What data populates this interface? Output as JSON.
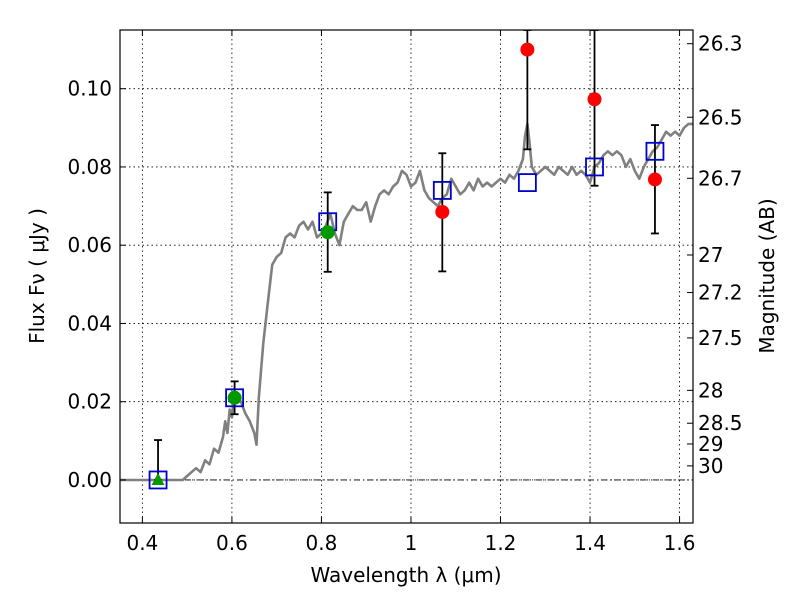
{
  "chart_data": {
    "type": "scatter",
    "xlabel": "Wavelength  λ (μm)",
    "ylabel": "Flux  Fν  ( μJy )",
    "ylabel_right": "Magnitude (AB)",
    "xlim": [
      0.35,
      1.63
    ],
    "ylim": [
      -0.011,
      0.115
    ],
    "grid": true,
    "x_ticks": [
      {
        "value": 0.4,
        "label": "0.4"
      },
      {
        "value": 0.6,
        "label": "0.6"
      },
      {
        "value": 0.8,
        "label": "0.8"
      },
      {
        "value": 1.0,
        "label": "1"
      },
      {
        "value": 1.2,
        "label": "1.2"
      },
      {
        "value": 1.4,
        "label": "1.4"
      },
      {
        "value": 1.6,
        "label": "1.6"
      }
    ],
    "y_ticks": [
      {
        "value": 0.0,
        "label": "0.00"
      },
      {
        "value": 0.02,
        "label": "0.02"
      },
      {
        "value": 0.04,
        "label": "0.04"
      },
      {
        "value": 0.06,
        "label": "0.06"
      },
      {
        "value": 0.08,
        "label": "0.08"
      },
      {
        "value": 0.1,
        "label": "0.10"
      }
    ],
    "right_ticks": [
      {
        "flux": 0.1115,
        "label": "26.3"
      },
      {
        "flux": 0.0927,
        "label": "26.5"
      },
      {
        "flux": 0.0771,
        "label": "26.7"
      },
      {
        "flux": 0.0575,
        "label": "27"
      },
      {
        "flux": 0.0479,
        "label": "27.2"
      },
      {
        "flux": 0.0363,
        "label": "27.5"
      },
      {
        "flux": 0.0229,
        "label": "28"
      },
      {
        "flux": 0.0145,
        "label": "28.5"
      },
      {
        "flux": 0.0092,
        "label": "29"
      },
      {
        "flux": 0.0036,
        "label": "30"
      }
    ],
    "zero_line": 0.0,
    "model_sed": {
      "color": "#808080",
      "points": [
        [
          0.35,
          0.0
        ],
        [
          0.45,
          0.0
        ],
        [
          0.49,
          0.0
        ],
        [
          0.5,
          0.001
        ],
        [
          0.52,
          0.003
        ],
        [
          0.53,
          0.002
        ],
        [
          0.54,
          0.005
        ],
        [
          0.55,
          0.004
        ],
        [
          0.56,
          0.008
        ],
        [
          0.57,
          0.007
        ],
        [
          0.58,
          0.011
        ],
        [
          0.585,
          0.015
        ],
        [
          0.59,
          0.012
        ],
        [
          0.595,
          0.018
        ],
        [
          0.6,
          0.016
        ],
        [
          0.605,
          0.022
        ],
        [
          0.61,
          0.021
        ],
        [
          0.62,
          0.02
        ],
        [
          0.63,
          0.017
        ],
        [
          0.64,
          0.015
        ],
        [
          0.65,
          0.012
        ],
        [
          0.655,
          0.009
        ],
        [
          0.66,
          0.021
        ],
        [
          0.67,
          0.035
        ],
        [
          0.68,
          0.045
        ],
        [
          0.69,
          0.055
        ],
        [
          0.7,
          0.057
        ],
        [
          0.71,
          0.058
        ],
        [
          0.72,
          0.062
        ],
        [
          0.73,
          0.063
        ],
        [
          0.74,
          0.062
        ],
        [
          0.75,
          0.065
        ],
        [
          0.76,
          0.066
        ],
        [
          0.77,
          0.064
        ],
        [
          0.78,
          0.066
        ],
        [
          0.79,
          0.062
        ],
        [
          0.8,
          0.063
        ],
        [
          0.81,
          0.065
        ],
        [
          0.82,
          0.068
        ],
        [
          0.83,
          0.063
        ],
        [
          0.84,
          0.06
        ],
        [
          0.85,
          0.066
        ],
        [
          0.86,
          0.068
        ],
        [
          0.87,
          0.07
        ],
        [
          0.88,
          0.069
        ],
        [
          0.89,
          0.069
        ],
        [
          0.9,
          0.071
        ],
        [
          0.91,
          0.066
        ],
        [
          0.92,
          0.07
        ],
        [
          0.93,
          0.073
        ],
        [
          0.94,
          0.074
        ],
        [
          0.95,
          0.073
        ],
        [
          0.96,
          0.075
        ],
        [
          0.97,
          0.076
        ],
        [
          0.98,
          0.079
        ],
        [
          0.99,
          0.078
        ],
        [
          1.0,
          0.075
        ],
        [
          1.01,
          0.076
        ],
        [
          1.02,
          0.079
        ],
        [
          1.03,
          0.074
        ],
        [
          1.04,
          0.072
        ],
        [
          1.05,
          0.071
        ],
        [
          1.06,
          0.07
        ],
        [
          1.07,
          0.072
        ],
        [
          1.08,
          0.073
        ],
        [
          1.09,
          0.077
        ],
        [
          1.1,
          0.075
        ],
        [
          1.11,
          0.073
        ],
        [
          1.12,
          0.074
        ],
        [
          1.13,
          0.076
        ],
        [
          1.14,
          0.074
        ],
        [
          1.15,
          0.077
        ],
        [
          1.16,
          0.075
        ],
        [
          1.17,
          0.076
        ],
        [
          1.18,
          0.075
        ],
        [
          1.19,
          0.076
        ],
        [
          1.2,
          0.077
        ],
        [
          1.21,
          0.076
        ],
        [
          1.22,
          0.078
        ],
        [
          1.23,
          0.077
        ],
        [
          1.24,
          0.079
        ],
        [
          1.25,
          0.082
        ],
        [
          1.255,
          0.088
        ],
        [
          1.26,
          0.091
        ],
        [
          1.265,
          0.086
        ],
        [
          1.27,
          0.08
        ],
        [
          1.28,
          0.078
        ],
        [
          1.29,
          0.079
        ],
        [
          1.3,
          0.08
        ],
        [
          1.31,
          0.079
        ],
        [
          1.32,
          0.078
        ],
        [
          1.33,
          0.08
        ],
        [
          1.34,
          0.079
        ],
        [
          1.35,
          0.078
        ],
        [
          1.36,
          0.08
        ],
        [
          1.37,
          0.078
        ],
        [
          1.38,
          0.079
        ],
        [
          1.39,
          0.078
        ],
        [
          1.4,
          0.076
        ],
        [
          1.41,
          0.08
        ],
        [
          1.42,
          0.081
        ],
        [
          1.43,
          0.083
        ],
        [
          1.44,
          0.084
        ],
        [
          1.45,
          0.083
        ],
        [
          1.46,
          0.084
        ],
        [
          1.47,
          0.083
        ],
        [
          1.48,
          0.08
        ],
        [
          1.49,
          0.082
        ],
        [
          1.5,
          0.079
        ],
        [
          1.51,
          0.077
        ],
        [
          1.52,
          0.08
        ],
        [
          1.53,
          0.082
        ],
        [
          1.54,
          0.084
        ],
        [
          1.55,
          0.085
        ],
        [
          1.56,
          0.087
        ],
        [
          1.57,
          0.089
        ],
        [
          1.58,
          0.088
        ],
        [
          1.59,
          0.089
        ],
        [
          1.6,
          0.088
        ],
        [
          1.61,
          0.09
        ],
        [
          1.62,
          0.091
        ],
        [
          1.63,
          0.091
        ]
      ]
    },
    "series": [
      {
        "marker": "open-square",
        "color": "#0000cc",
        "points": [
          {
            "x": 0.435,
            "y": 0.0
          },
          {
            "x": 0.606,
            "y": 0.021
          },
          {
            "x": 0.814,
            "y": 0.066
          },
          {
            "x": 1.07,
            "y": 0.074
          },
          {
            "x": 1.26,
            "y": 0.076
          },
          {
            "x": 1.41,
            "y": 0.08
          },
          {
            "x": 1.545,
            "y": 0.084
          }
        ]
      },
      {
        "marker": "filled-circle",
        "color": "#009900",
        "points": [
          {
            "x": 0.606,
            "y": 0.021,
            "err_lo": 0.0168,
            "err_hi": 0.0252
          },
          {
            "x": 0.814,
            "y": 0.0633,
            "err_lo": 0.0532,
            "err_hi": 0.0735
          }
        ]
      },
      {
        "marker": "filled-triangle",
        "color": "#009900",
        "points": [
          {
            "x": 0.435,
            "y": 0.0,
            "err_lo": 0.0,
            "err_hi": 0.0102
          }
        ]
      },
      {
        "marker": "filled-circle",
        "color": "#ff0000",
        "points": [
          {
            "x": 1.07,
            "y": 0.0685,
            "err_lo": 0.0533,
            "err_hi": 0.0835
          },
          {
            "x": 1.26,
            "y": 0.11,
            "err_lo": 0.0845,
            "err_hi": 0.115
          },
          {
            "x": 1.41,
            "y": 0.0973,
            "err_lo": 0.0752,
            "err_hi": 0.115
          },
          {
            "x": 1.545,
            "y": 0.0768,
            "err_lo": 0.063,
            "err_hi": 0.0907
          }
        ]
      }
    ]
  }
}
